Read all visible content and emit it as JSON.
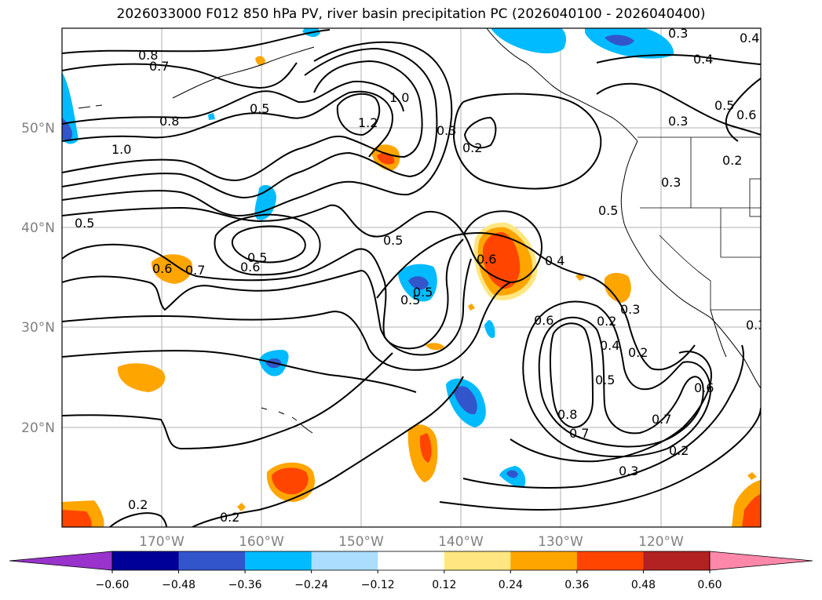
{
  "title": "2026033000 F012 850 hPa PV, river basin precipitation PC (2026040100 - 2026040400)",
  "latitude_labels": [
    "20°N",
    "30°N",
    "40°N",
    "50°N"
  ],
  "longitude_labels": [
    "170°W",
    "160°W",
    "150°W",
    "140°W",
    "130°W",
    "120°W"
  ],
  "colorbar": {
    "colors": [
      "#9933cc",
      "#000099",
      "#3355cc",
      "#00bbff",
      "#aaddff",
      "#ffffff",
      "#ffe680",
      "#ffa500",
      "#ff4500",
      "#b22222",
      "#ff88aa"
    ],
    "tick_labels": [
      "−0.60",
      "−0.48",
      "−0.36",
      "−0.24",
      "−0.12",
      "0.12",
      "0.24",
      "0.36",
      "0.48",
      "0.60"
    ]
  },
  "contour_labels": [
    "0.8",
    "0.7",
    "0.5",
    "0.8",
    "1.0",
    "1.2",
    "1.0",
    "0.3",
    "0.2",
    "0.3",
    "0.4",
    "0.3",
    "0.5",
    "0.6",
    "0.5",
    "0.5",
    "0.6",
    "0.7",
    "0.5",
    "0.5",
    "0.6",
    "0.4",
    "0.5",
    "0.3",
    "0.6",
    "0.4",
    "0.5",
    "0.2",
    "0.8",
    "0.7",
    "0.6",
    "0.7",
    "0.2",
    "0.3",
    "0.2",
    "0.2",
    "0.3",
    "0.4",
    "0.3",
    "0.5",
    "0.6",
    "0.2",
    "0.2"
  ]
}
